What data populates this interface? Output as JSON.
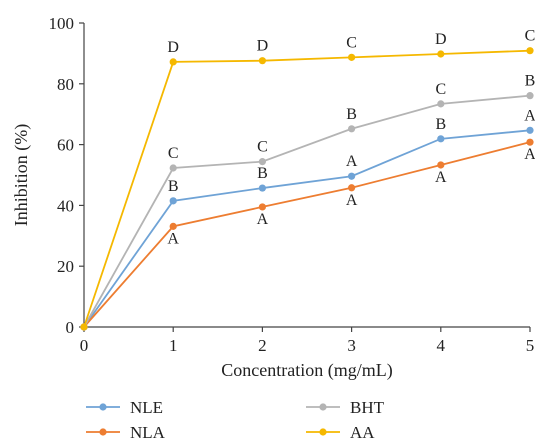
{
  "chart_data": {
    "type": "line",
    "xlabel": "Concentration (mg/mL)",
    "ylabel": "Inhibition (%)",
    "xlim": [
      0,
      5
    ],
    "ylim": [
      0,
      100
    ],
    "x_ticks": [
      "0",
      "1",
      "2",
      "3",
      "4",
      "5"
    ],
    "y_ticks": [
      "0",
      "20",
      "40",
      "60",
      "80",
      "100"
    ],
    "x": [
      0,
      1,
      2,
      3,
      4,
      5
    ],
    "grid": false,
    "legend_position": "bottom",
    "series": [
      {
        "name": "NLE",
        "color": "#6fa3d6",
        "values": [
          0,
          41.5,
          45.7,
          49.6,
          61.9,
          64.7
        ],
        "labels": [
          "",
          "B",
          "B",
          "A",
          "B",
          "A"
        ]
      },
      {
        "name": "NLA",
        "color": "#ed7d31",
        "values": [
          0,
          33.1,
          39.5,
          45.8,
          53.3,
          60.8
        ],
        "labels": [
          "",
          "A",
          "A",
          "A",
          "A",
          "A"
        ]
      },
      {
        "name": "BHT",
        "color": "#b4b4b4",
        "values": [
          0,
          52.3,
          54.4,
          65.2,
          73.4,
          76.1
        ],
        "labels": [
          "",
          "C",
          "C",
          "B",
          "C",
          "B"
        ]
      },
      {
        "name": "AA",
        "color": "#f5b800",
        "values": [
          0,
          87.2,
          87.6,
          88.7,
          89.8,
          90.9
        ],
        "labels": [
          "",
          "D",
          "D",
          "C",
          "D",
          "C"
        ]
      }
    ]
  }
}
